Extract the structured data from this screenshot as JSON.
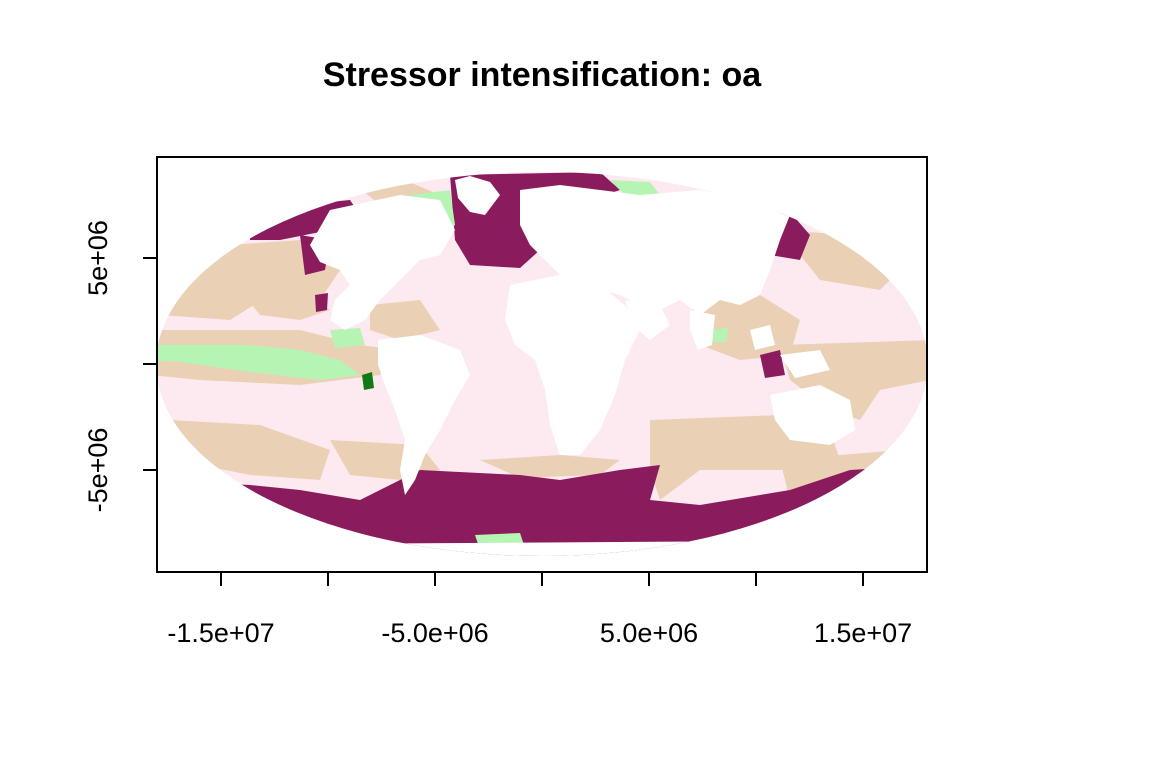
{
  "title": "Stressor intensification: oa",
  "colors": {
    "ocean_background": "#FDEAF0",
    "tan": "#EAD1B5",
    "purple": "#8A1C5E",
    "light_green": "#B6F4B3",
    "dark_green": "#127A12",
    "land": "#FFFFFF"
  },
  "chart_data": {
    "type": "heatmap",
    "projection": "Mollweide",
    "x_axis": {
      "ticks": [
        -15000000,
        -10000000,
        -5000000,
        0,
        5000000,
        10000000,
        15000000
      ],
      "labels": [
        {
          "value": -15000000,
          "text": "-1.5e+07"
        },
        {
          "value": -5000000,
          "text": "-5.0e+06"
        },
        {
          "value": 5000000,
          "text": "5.0e+06"
        },
        {
          "value": 15000000,
          "text": "1.5e+07"
        }
      ],
      "xlim": [
        -18000000,
        18000000
      ]
    },
    "y_axis": {
      "ticks": [
        -5000000,
        0,
        5000000
      ],
      "labels": [
        {
          "value": 5000000,
          "text": "5e+06"
        },
        {
          "value": -5000000,
          "text": "-5e+06"
        }
      ],
      "ylim": [
        -9700000,
        9800000
      ]
    },
    "legend": "none",
    "grid": false
  }
}
